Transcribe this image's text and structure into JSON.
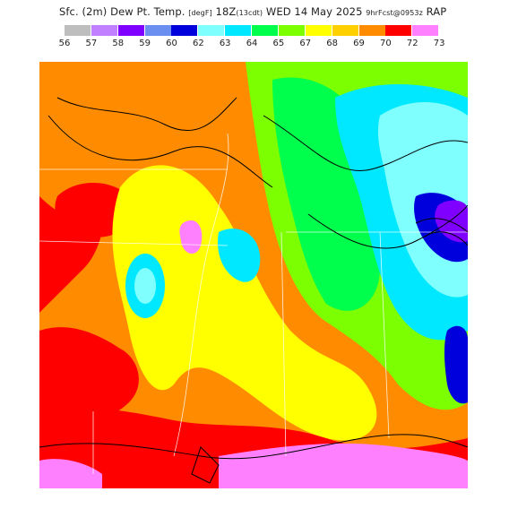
{
  "title": {
    "main": "Sfc. (2m) Dew Pt. Temp.",
    "units": "[degF]",
    "valid_time": "18Z",
    "issue": "(13cdt)",
    "date": "WED 14 May 2025",
    "forecast": "9hrFcst@0953z",
    "model": "RAP"
  },
  "legend": {
    "values": [
      "56",
      "57",
      "58",
      "59",
      "60",
      "62",
      "63",
      "64",
      "65",
      "67",
      "68",
      "69",
      "70",
      "72",
      "73"
    ],
    "colors": [
      "#bebebe",
      "#c080ff",
      "#8000ff",
      "#6a8ff0",
      "#0000dd",
      "#80ffff",
      "#00e8ff",
      "#00ff4c",
      "#7cff00",
      "#ffff00",
      "#ffd000",
      "#ff8c00",
      "#ff0000",
      "#ff80ff",
      "#ffffff"
    ]
  },
  "map": {
    "region": "Lower Mississippi Valley / Gulf Coast",
    "variable": "2m dew point temperature shaded",
    "overlay": "contour lines (black)"
  }
}
